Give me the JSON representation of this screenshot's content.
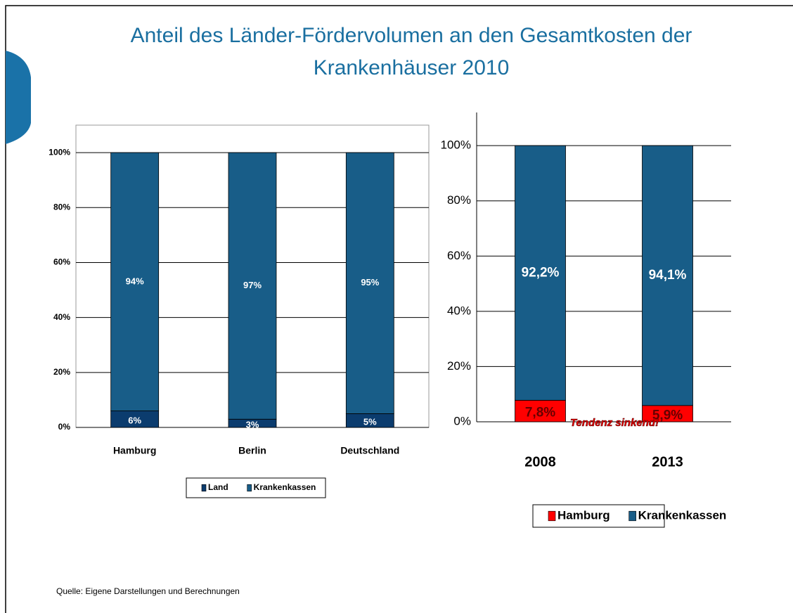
{
  "title": "Anteil des Länder-Fördervolumen an den Gesamtkosten der Krankenhäuser 2010",
  "source": "Quelle: Eigene Darstellungen und Berechnungen",
  "chart_data": [
    {
      "type": "stacked_bar",
      "categories": [
        "Hamburg",
        "Berlin",
        "Deutschland"
      ],
      "series": [
        {
          "name": "Land",
          "color": "#0b3c6e",
          "values": [
            6,
            3,
            5
          ],
          "value_labels": [
            "6%",
            "3%",
            "5%"
          ]
        },
        {
          "name": "Krankenkassen",
          "color": "#185d88",
          "values": [
            94,
            97,
            95
          ],
          "value_labels": [
            "94%",
            "97%",
            "95%"
          ]
        }
      ],
      "ylim": [
        0,
        110
      ],
      "yticks": [
        {
          "value": 0,
          "label": "0%"
        },
        {
          "value": 20,
          "label": "20%"
        },
        {
          "value": 40,
          "label": "40%"
        },
        {
          "value": 60,
          "label": "60%"
        },
        {
          "value": 80,
          "label": "80%"
        },
        {
          "value": 100,
          "label": "100%"
        }
      ],
      "grid": true,
      "legend": "bottom"
    },
    {
      "type": "stacked_bar",
      "categories": [
        "2008",
        "2013"
      ],
      "series": [
        {
          "name": "Hamburg",
          "color": "#ff0000",
          "values": [
            7.8,
            5.9
          ],
          "value_labels": [
            "7,8%",
            "5,9%"
          ]
        },
        {
          "name": "Krankenkassen",
          "color": "#185d88",
          "values": [
            92.2,
            94.1
          ],
          "value_labels": [
            "92,2%",
            "94,1%"
          ]
        }
      ],
      "ylim": [
        0,
        112
      ],
      "yticks": [
        {
          "value": 0,
          "label": "0%"
        },
        {
          "value": 20,
          "label": "20%"
        },
        {
          "value": 40,
          "label": "40%"
        },
        {
          "value": 60,
          "label": "60%"
        },
        {
          "value": 80,
          "label": "80%"
        },
        {
          "value": 100,
          "label": "100%"
        }
      ],
      "grid": true,
      "legend": "bottom",
      "annotation": "Tendenz sinkend!"
    }
  ]
}
